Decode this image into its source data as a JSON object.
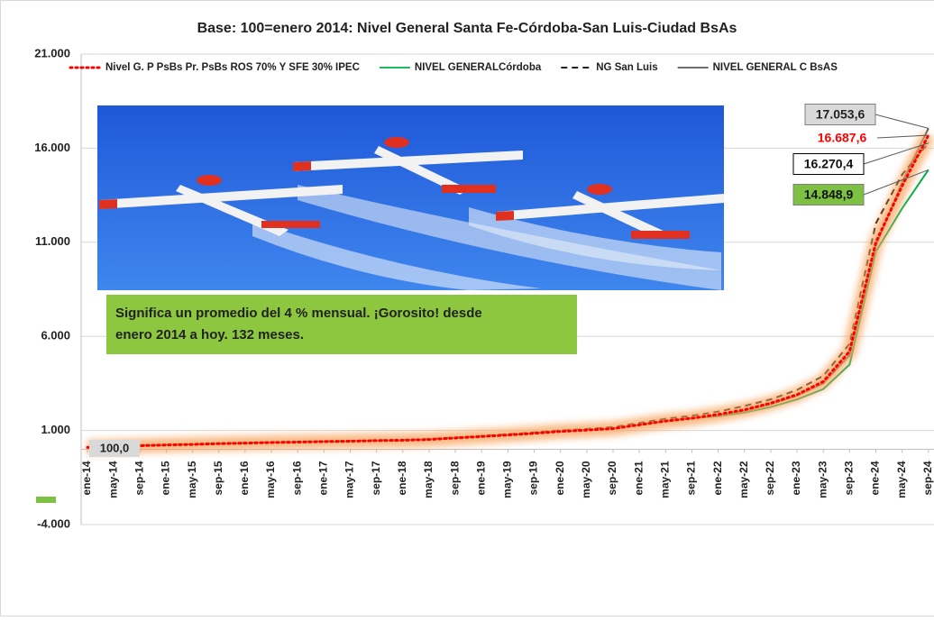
{
  "chart_data": {
    "type": "line",
    "title": "Base: 100=enero 2014: Nivel General Santa Fe-Córdoba-San Luis-Ciudad BsAs",
    "annotation": [
      "Significa un promedio del 4 % mensual. ¡Gorosito! desde",
      "enero 2014 a hoy. 132 meses."
    ],
    "categories": [
      "ene-14",
      "may-14",
      "sep-14",
      "ene-15",
      "may-15",
      "sep-15",
      "ene-16",
      "may-16",
      "sep-16",
      "ene-17",
      "may-17",
      "sep-17",
      "ene-18",
      "may-18",
      "sep-18",
      "ene-19",
      "may-19",
      "sep-19",
      "ene-20",
      "may-20",
      "sep-20",
      "ene-21",
      "may-21",
      "sep-21",
      "ene-22",
      "may-22",
      "sep-22",
      "ene-23",
      "may-23",
      "sep-23",
      "ene-24",
      "may-24",
      "sep-24"
    ],
    "ylim": [
      -4000,
      21000
    ],
    "yticks": [
      {
        "value": -4000,
        "label": "-4.000"
      },
      {
        "value": 1000,
        "label": "1.000"
      },
      {
        "value": 6000,
        "label": "6.000"
      },
      {
        "value": 11000,
        "label": "11.000"
      },
      {
        "value": 16000,
        "label": "16.000"
      },
      {
        "value": 21000,
        "label": "21.000"
      }
    ],
    "grid": true,
    "legend": "top",
    "series": [
      {
        "name": "Nivel G. P PsBs Pr. PsBs ROS 70% Y SFE 30% IPEC",
        "color": "#ff0000",
        "dash": "dotted",
        "glow": true,
        "values": [
          100,
          150,
          190,
          230,
          260,
          300,
          330,
          360,
          380,
          410,
          430,
          460,
          480,
          520,
          600,
          680,
          760,
          850,
          950,
          1020,
          1100,
          1300,
          1500,
          1650,
          1850,
          2100,
          2450,
          2900,
          3600,
          5200,
          11000,
          14000,
          16687.6
        ],
        "value_labels": [
          "100,0",
          null,
          null,
          null,
          null,
          null,
          null,
          null,
          null,
          null,
          null,
          null,
          null,
          null,
          null,
          null,
          null,
          null,
          null,
          null,
          null,
          null,
          null,
          null,
          null,
          null,
          null,
          null,
          null,
          null,
          null,
          null,
          "16.687,6"
        ]
      },
      {
        "name": "NIVEL GENERALCórdoba",
        "color": "#00b050",
        "dash": "solid",
        "values": [
          100,
          150,
          190,
          230,
          260,
          300,
          330,
          360,
          380,
          410,
          430,
          460,
          480,
          520,
          600,
          680,
          760,
          850,
          950,
          1020,
          1100,
          1300,
          1500,
          1650,
          1750,
          1950,
          2250,
          2650,
          3200,
          4500,
          10500,
          12800,
          14848.9
        ],
        "value_labels": [
          null,
          null,
          null,
          null,
          null,
          null,
          null,
          null,
          null,
          null,
          null,
          null,
          null,
          null,
          null,
          null,
          null,
          null,
          null,
          null,
          null,
          null,
          null,
          null,
          null,
          null,
          null,
          null,
          null,
          null,
          null,
          null,
          "14.848,9"
        ]
      },
      {
        "name": "NG San Luis",
        "color": "#000000",
        "dash": "dashed",
        "values": [
          100,
          155,
          200,
          240,
          270,
          310,
          345,
          375,
          400,
          430,
          450,
          480,
          500,
          545,
          630,
          710,
          800,
          900,
          1000,
          1080,
          1180,
          1400,
          1620,
          1780,
          2000,
          2300,
          2650,
          3150,
          3900,
          5600,
          12000,
          14600,
          16270.4
        ],
        "value_labels": [
          null,
          null,
          null,
          null,
          null,
          null,
          null,
          null,
          null,
          null,
          null,
          null,
          null,
          null,
          null,
          null,
          null,
          null,
          null,
          null,
          null,
          null,
          null,
          null,
          null,
          null,
          null,
          null,
          null,
          null,
          null,
          null,
          "16.270,4"
        ]
      },
      {
        "name": "NIVEL GENERAL C BsAS",
        "color": "#595959",
        "dash": "solid",
        "values": [
          100,
          150,
          190,
          230,
          260,
          300,
          330,
          360,
          380,
          410,
          430,
          460,
          480,
          520,
          600,
          680,
          760,
          850,
          950,
          1020,
          1100,
          1300,
          1500,
          1650,
          1800,
          2050,
          2400,
          2850,
          3500,
          5000,
          10800,
          14200,
          17053.6
        ],
        "value_labels": [
          null,
          null,
          null,
          null,
          null,
          null,
          null,
          null,
          null,
          null,
          null,
          null,
          null,
          null,
          null,
          null,
          null,
          null,
          null,
          null,
          null,
          null,
          null,
          null,
          null,
          null,
          null,
          null,
          null,
          null,
          null,
          null,
          "17.053,6"
        ]
      }
    ]
  }
}
